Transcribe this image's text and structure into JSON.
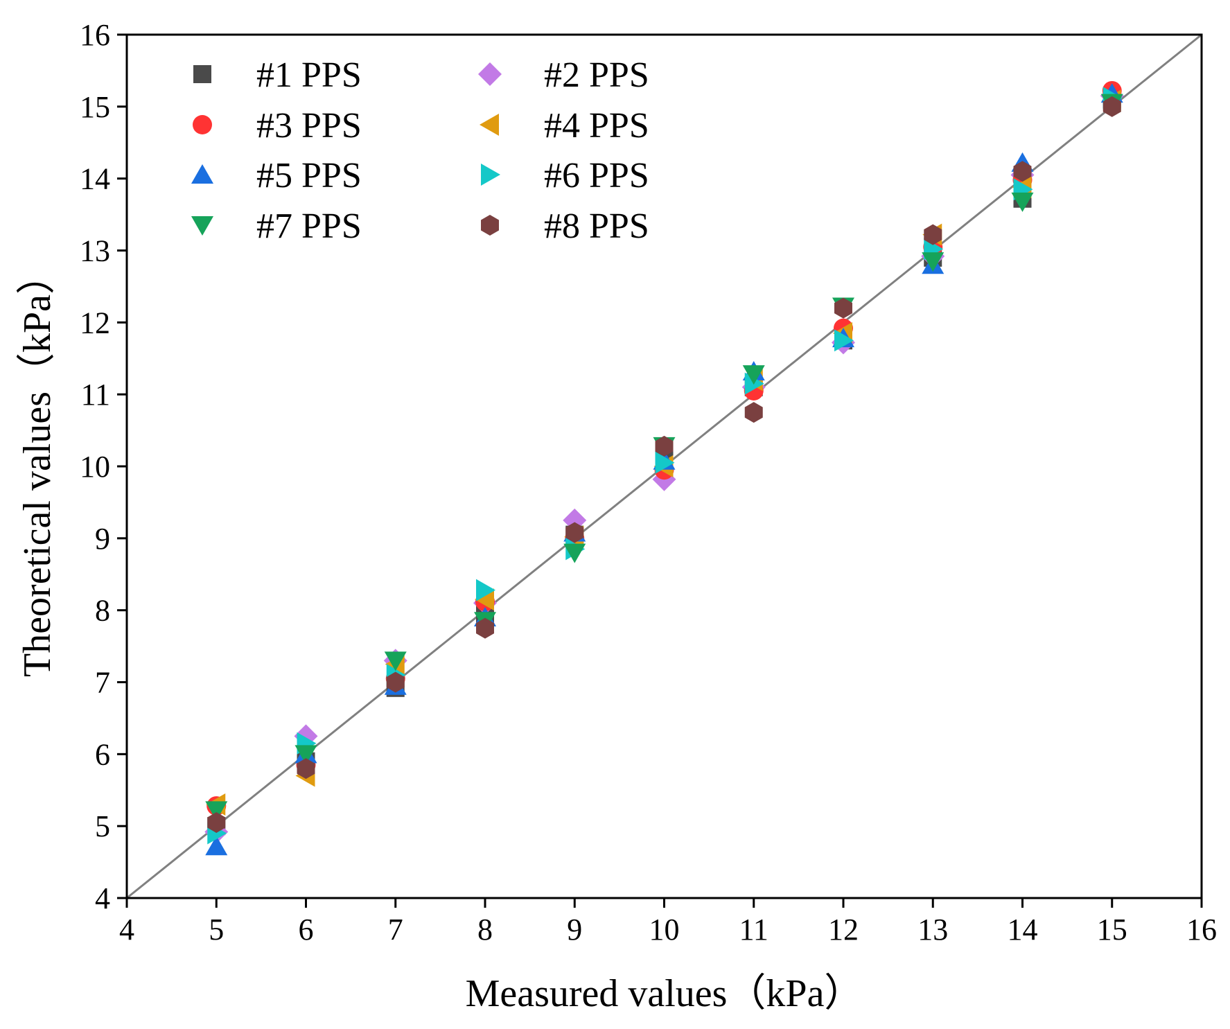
{
  "chart_data": {
    "type": "scatter",
    "xlabel": "Measured values（kPa）",
    "ylabel": "Theoretical values（kPa）",
    "xlim": [
      4,
      16
    ],
    "ylim": [
      4,
      16
    ],
    "xticks": [
      4,
      5,
      6,
      7,
      8,
      9,
      10,
      11,
      12,
      13,
      14,
      15,
      16
    ],
    "yticks": [
      4,
      5,
      6,
      7,
      8,
      9,
      10,
      11,
      12,
      13,
      14,
      15,
      16
    ],
    "grid": false,
    "legend_position": "top-left",
    "reference_line": {
      "x": [
        4,
        16
      ],
      "y": [
        4,
        16
      ],
      "color": "#808080"
    },
    "x": [
      5,
      6,
      7,
      8,
      9,
      10,
      11,
      12,
      13,
      14,
      15
    ],
    "series": [
      {
        "name": "#1 PPS",
        "marker": "square",
        "color": "#4a4a4a",
        "values": [
          5.0,
          5.9,
          6.92,
          7.95,
          9.05,
          10.2,
          11.1,
          11.75,
          12.9,
          13.72,
          15.1
        ]
      },
      {
        "name": "#2 PPS",
        "marker": "diamond",
        "color": "#c27ae6",
        "values": [
          4.92,
          6.25,
          7.3,
          8.1,
          9.25,
          9.82,
          11.1,
          11.72,
          12.92,
          14.05,
          15.15
        ]
      },
      {
        "name": "#3 PPS",
        "marker": "circle",
        "color": "#ff3333",
        "values": [
          5.28,
          5.85,
          7.05,
          8.12,
          9.0,
          9.95,
          11.05,
          11.92,
          13.05,
          13.98,
          15.22
        ]
      },
      {
        "name": "#4 PPS",
        "marker": "triangle-left",
        "color": "#e09b10",
        "values": [
          5.3,
          5.7,
          7.25,
          8.15,
          9.02,
          10.0,
          11.2,
          11.85,
          13.22,
          13.88,
          15.08
        ]
      },
      {
        "name": "#5 PPS",
        "marker": "triangle-up",
        "color": "#1a6fe0",
        "values": [
          4.72,
          6.0,
          6.95,
          7.9,
          9.08,
          10.08,
          11.32,
          11.78,
          12.8,
          14.22,
          15.18
        ]
      },
      {
        "name": "#6 PPS",
        "marker": "triangle-right",
        "color": "#14c8c8",
        "values": [
          4.9,
          6.15,
          7.1,
          8.28,
          8.85,
          10.05,
          11.15,
          11.75,
          13.02,
          13.85,
          15.12
        ]
      },
      {
        "name": "#7 PPS",
        "marker": "triangle-down",
        "color": "#16a35a",
        "values": [
          5.22,
          6.0,
          7.3,
          7.85,
          8.8,
          10.28,
          11.28,
          12.22,
          12.85,
          13.68,
          15.05
        ]
      },
      {
        "name": "#8 PPS",
        "marker": "hexagon",
        "color": "#7a4040",
        "values": [
          5.05,
          5.8,
          7.0,
          7.75,
          9.08,
          10.28,
          10.75,
          12.2,
          13.22,
          14.1,
          15.0
        ]
      }
    ]
  }
}
